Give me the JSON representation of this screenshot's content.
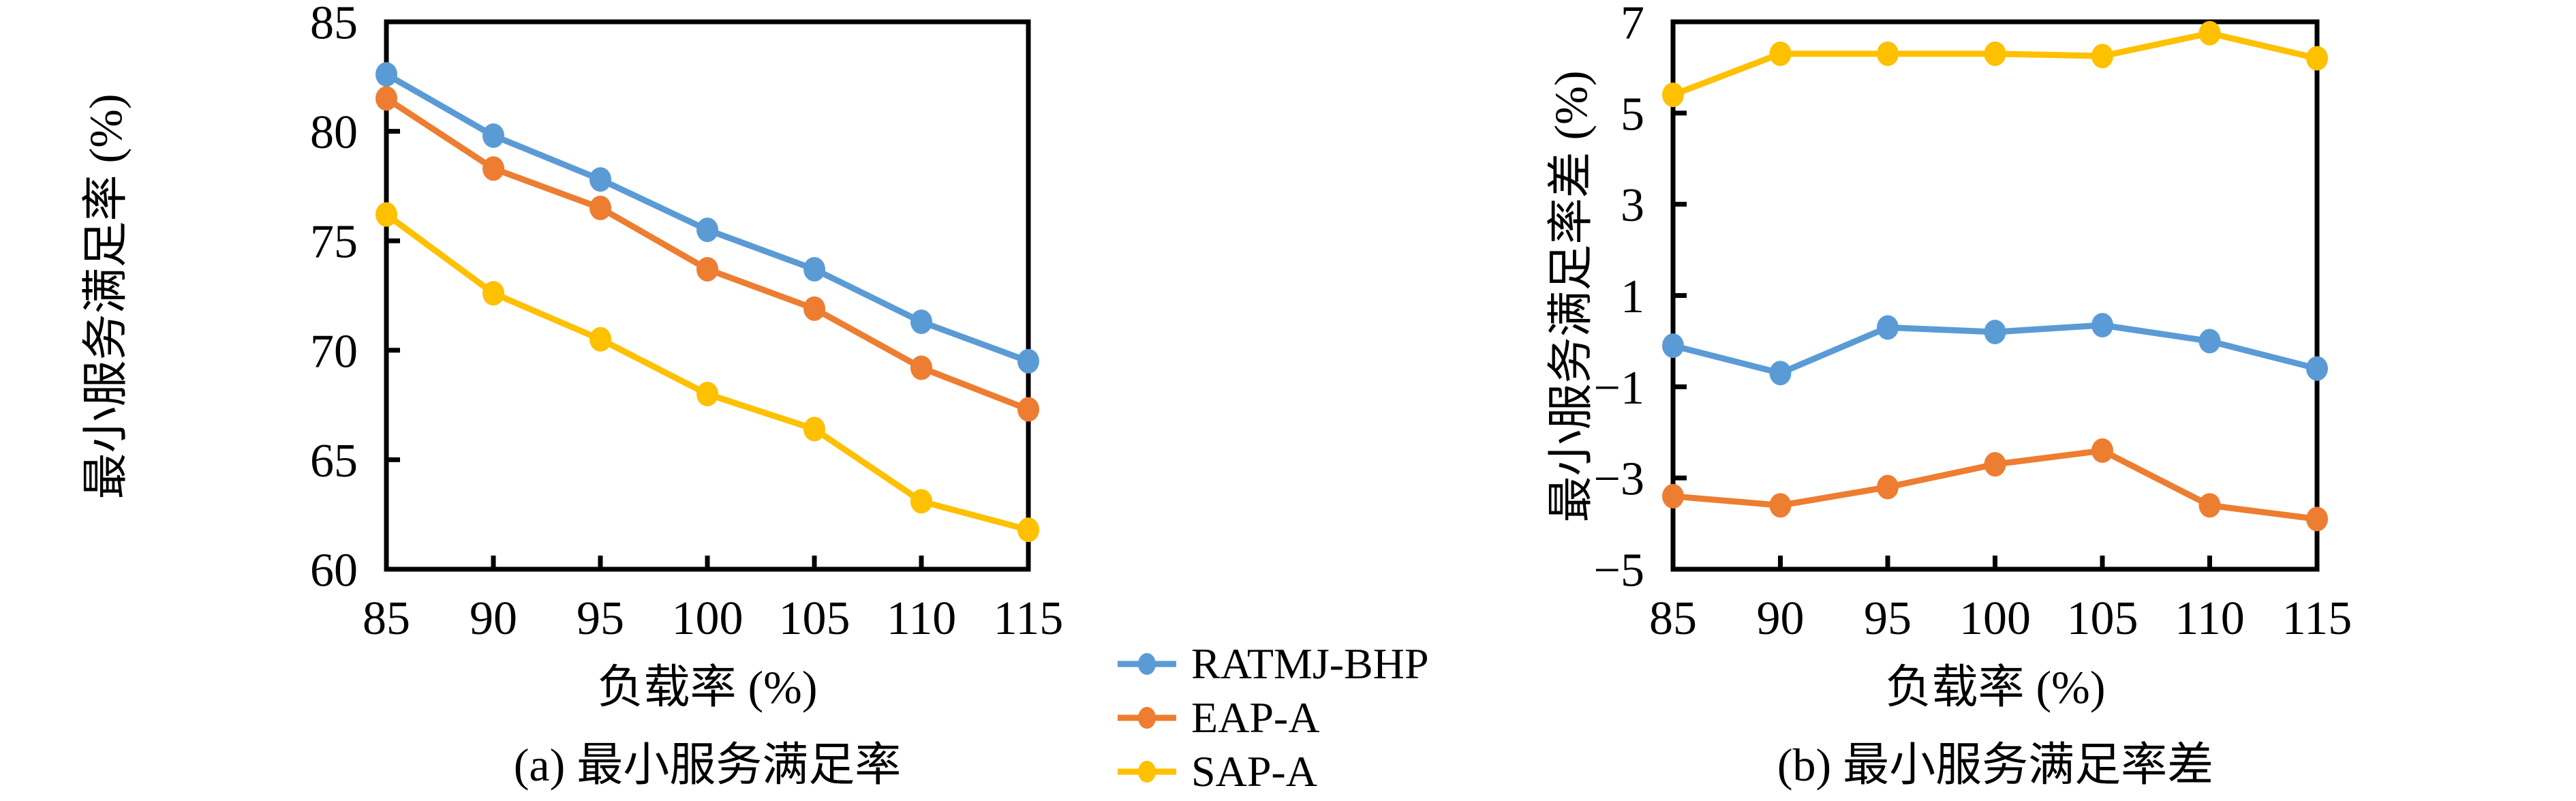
{
  "legend": {
    "items": [
      {
        "label": "RATMJ-BHP",
        "color": "#5B9BD5"
      },
      {
        "label": "EAP-A",
        "color": "#ED7D31"
      },
      {
        "label": "SAP-A",
        "color": "#FFC000"
      }
    ]
  },
  "chart_data": [
    {
      "id": "a",
      "type": "line",
      "caption": "(a) 最小服务满足率",
      "xlabel": "负载率 (%)",
      "ylabel": "最小服务满足率 (%)",
      "x": [
        85,
        90,
        95,
        100,
        105,
        110,
        115
      ],
      "xticks": [
        85,
        90,
        95,
        100,
        105,
        110,
        115
      ],
      "yticks": [
        85,
        80,
        75,
        70,
        65,
        60
      ],
      "xlim": [
        85,
        115
      ],
      "ylim": [
        60,
        85
      ],
      "grid": false,
      "legend_position": "below-center",
      "series": [
        {
          "name": "RATMJ-BHP",
          "color": "#5B9BD5",
          "values": [
            82.6,
            79.8,
            77.8,
            75.5,
            73.7,
            71.3,
            69.5
          ]
        },
        {
          "name": "EAP-A",
          "color": "#ED7D31",
          "values": [
            81.5,
            78.3,
            76.5,
            73.7,
            71.9,
            69.2,
            67.3
          ]
        },
        {
          "name": "SAP-A",
          "color": "#FFC000",
          "values": [
            76.2,
            72.6,
            70.5,
            68.0,
            66.4,
            63.1,
            61.8
          ]
        }
      ]
    },
    {
      "id": "b",
      "type": "line",
      "caption": "(b) 最小服务满足率差",
      "xlabel": "负载率 (%)",
      "ylabel": "最小服务满足率差 (%)",
      "x": [
        85,
        90,
        95,
        100,
        105,
        110,
        115
      ],
      "xticks": [
        85,
        90,
        95,
        100,
        105,
        110,
        115
      ],
      "yticks": [
        7,
        5,
        3,
        1,
        -1,
        -3,
        -5
      ],
      "xlim": [
        85,
        115
      ],
      "ylim": [
        -5,
        7
      ],
      "grid": false,
      "legend_position": "none",
      "series": [
        {
          "name": "RATMJ-BHP",
          "color": "#5B9BD5",
          "values": [
            -0.1,
            -0.7,
            0.3,
            0.2,
            0.35,
            0.0,
            -0.6
          ]
        },
        {
          "name": "EAP-A",
          "color": "#ED7D31",
          "values": [
            -3.4,
            -3.6,
            -3.2,
            -2.7,
            -2.4,
            -3.6,
            -3.9
          ]
        },
        {
          "name": "SAP-A",
          "color": "#FFC000",
          "values": [
            5.4,
            6.3,
            6.3,
            6.3,
            6.25,
            6.75,
            6.2
          ]
        }
      ]
    }
  ]
}
